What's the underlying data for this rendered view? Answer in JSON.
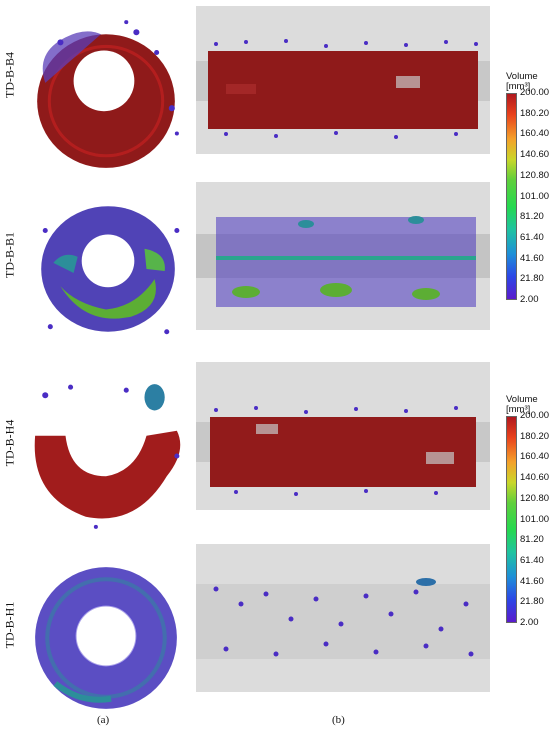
{
  "rows": [
    {
      "label": "TD-B-B4",
      "fill": "predominantly large red voids"
    },
    {
      "label": "TD-B-B1",
      "fill": "blue and green voids"
    },
    {
      "label": "TD-B-H4",
      "fill": "predominantly large red voids"
    },
    {
      "label": "TD-B-H1",
      "fill": "small blue voids"
    }
  ],
  "legend": {
    "title_line1": "Volume",
    "title_line2": "[mm³]",
    "ticks": [
      "200.00",
      "180.20",
      "160.40",
      "140.60",
      "120.80",
      "101.00",
      "81.20",
      "61.40",
      "41.60",
      "21.80",
      "2.00"
    ]
  },
  "panels": {
    "a": "(a)",
    "b": "(b)"
  },
  "colors": {
    "void_large": "#9b1b1b",
    "void_small": "#4a2dc4",
    "void_medium": "#3fa34a",
    "void_teal": "#2c8e9a",
    "sample_gray": "#d9d9d9"
  }
}
